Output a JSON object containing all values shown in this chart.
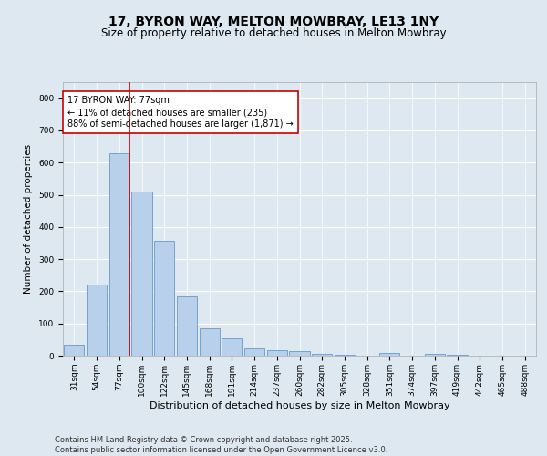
{
  "title1": "17, BYRON WAY, MELTON MOWBRAY, LE13 1NY",
  "title2": "Size of property relative to detached houses in Melton Mowbray",
  "xlabel": "Distribution of detached houses by size in Melton Mowbray",
  "ylabel": "Number of detached properties",
  "categories": [
    "31sqm",
    "54sqm",
    "77sqm",
    "100sqm",
    "122sqm",
    "145sqm",
    "168sqm",
    "191sqm",
    "214sqm",
    "237sqm",
    "260sqm",
    "282sqm",
    "305sqm",
    "328sqm",
    "351sqm",
    "374sqm",
    "397sqm",
    "419sqm",
    "442sqm",
    "465sqm",
    "488sqm"
  ],
  "values": [
    35,
    220,
    630,
    510,
    358,
    183,
    85,
    55,
    22,
    18,
    13,
    7,
    2,
    0,
    8,
    0,
    6,
    4,
    0,
    0,
    0
  ],
  "bar_color": "#b8d0ea",
  "bar_edge_color": "#6699cc",
  "vline_color": "#cc0000",
  "annotation_text": "17 BYRON WAY: 77sqm\n← 11% of detached houses are smaller (235)\n88% of semi-detached houses are larger (1,871) →",
  "annotation_box_color": "#ffffff",
  "annotation_box_edge": "#cc0000",
  "ylim": [
    0,
    850
  ],
  "yticks": [
    0,
    100,
    200,
    300,
    400,
    500,
    600,
    700,
    800
  ],
  "background_color": "#dde8f0",
  "plot_bg_color": "#dde8f0",
  "grid_color": "#ffffff",
  "footer_line1": "Contains HM Land Registry data © Crown copyright and database right 2025.",
  "footer_line2": "Contains public sector information licensed under the Open Government Licence v3.0.",
  "title1_fontsize": 10,
  "title2_fontsize": 8.5,
  "xlabel_fontsize": 8,
  "ylabel_fontsize": 7.5,
  "tick_fontsize": 6.5,
  "annotation_fontsize": 7,
  "footer_fontsize": 6
}
